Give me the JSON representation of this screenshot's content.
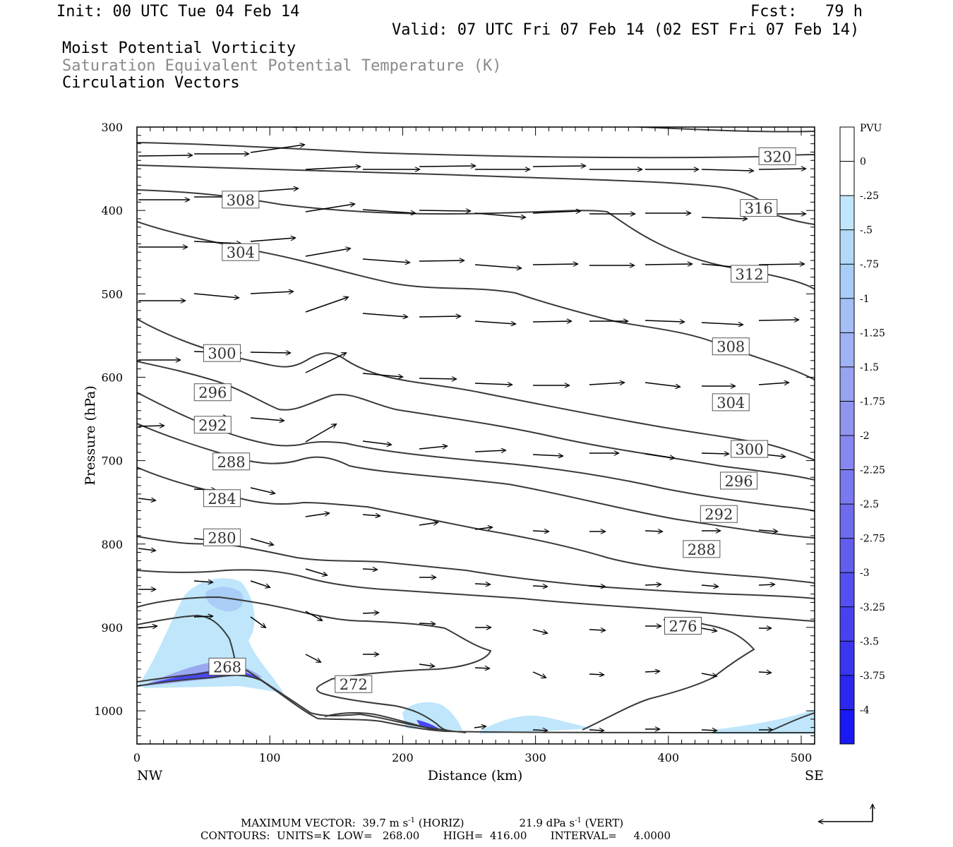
{
  "header": {
    "init": "Init: 00 UTC Tue 04 Feb 14",
    "fcst": "Fcst:   79 h",
    "valid": "Valid: 07 UTC Fri 07 Feb 14 (02 EST Fri 07 Feb 14)",
    "field1": "Moist Potential Vorticity",
    "field2": "Saturation Equivalent Potential Temperature (K)",
    "field3": "Circulation Vectors"
  },
  "footer": {
    "max_vector_prefix": "MAXIMUM VECTOR:  39.7 m s",
    "max_vector_horiz": " (HORIZ)",
    "max_vector_vert_val": "21.9 dPa s",
    "max_vector_vert": " (VERT)",
    "exponent": "-1",
    "contours": "CONTOURS:  UNITS=K  LOW=   268.00       HIGH=  416.00       INTERVAL=     4.0000"
  },
  "colors": {
    "background": "#ffffff",
    "contour": "#3a3a3a",
    "vector": "#000000",
    "pv_light": "#bfe6fb",
    "pv_mid": "#a4bff5",
    "pv_strong": "#3636f0"
  },
  "chart_data": {
    "type": "cross-section",
    "xlabel": "Distance (km)",
    "ylabel": "Pressure (hPa)",
    "xlim": [
      0,
      510
    ],
    "ylim": [
      1040,
      300
    ],
    "x_ticks": [
      0,
      100,
      200,
      300,
      400,
      500
    ],
    "y_ticks": [
      300,
      400,
      500,
      600,
      700,
      800,
      900,
      1000
    ],
    "x_end_labels": [
      "NW",
      "SE"
    ],
    "colorbar": {
      "unit": "PVU",
      "levels": [
        "0",
        "-.25",
        "-.5",
        "-.75",
        "-1",
        "-1.25",
        "-1.5",
        "-1.75",
        "-2",
        "-2.25",
        "-2.5",
        "-2.75",
        "-3",
        "-3.25",
        "-3.5",
        "-3.75",
        "-4"
      ],
      "colors": [
        "#ffffff",
        "#ffffff",
        "#bfe6fb",
        "#b3d9f8",
        "#a9cdf7",
        "#a4bff5",
        "#9fb2f3",
        "#98a4f1",
        "#9095f0",
        "#8787f0",
        "#7b79ef",
        "#6f6bef",
        "#615def",
        "#544ff0",
        "#4742f0",
        "#3a35f0",
        "#2b27f1",
        "#1a18f3"
      ]
    },
    "contour_labels": [
      {
        "value": "320",
        "x": 482,
        "p": 335
      },
      {
        "value": "316",
        "x": 468,
        "p": 397
      },
      {
        "value": "312",
        "x": 461,
        "p": 476
      },
      {
        "value": "308",
        "x": 447,
        "p": 563
      },
      {
        "value": "304",
        "x": 447,
        "p": 630
      },
      {
        "value": "300",
        "x": 461,
        "p": 686
      },
      {
        "value": "296",
        "x": 453,
        "p": 724
      },
      {
        "value": "292",
        "x": 438,
        "p": 764
      },
      {
        "value": "288",
        "x": 425,
        "p": 806
      },
      {
        "value": "276",
        "x": 411,
        "p": 898
      },
      {
        "value": "308",
        "x": 78,
        "p": 387
      },
      {
        "value": "304",
        "x": 78,
        "p": 450
      },
      {
        "value": "300",
        "x": 64,
        "p": 571
      },
      {
        "value": "296",
        "x": 57,
        "p": 618
      },
      {
        "value": "292",
        "x": 57,
        "p": 657
      },
      {
        "value": "288",
        "x": 71,
        "p": 701
      },
      {
        "value": "284",
        "x": 64,
        "p": 745
      },
      {
        "value": "280",
        "x": 64,
        "p": 792
      },
      {
        "value": "268",
        "x": 68,
        "p": 947
      },
      {
        "value": "272",
        "x": 163,
        "p": 968
      }
    ]
  }
}
